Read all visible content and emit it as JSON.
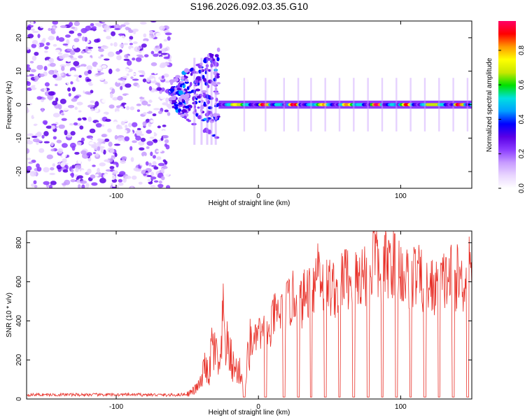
{
  "title": "S196.2026.092.03.35.G10",
  "colors": {
    "snr_line": "#e8322a",
    "axis": "#000000"
  },
  "chart_data": [
    {
      "type": "heatmap",
      "name": "spectrogram",
      "xlabel": "Height of straight line (km)",
      "ylabel": "Frequency (Hz)",
      "xlim": [
        -163,
        150
      ],
      "ylim": [
        -25,
        25
      ],
      "xticks": [
        -100,
        0,
        100
      ],
      "yticks": [
        -20,
        -10,
        0,
        10,
        20
      ],
      "colorbar": {
        "label": "Normalized spectral amplitude",
        "range": [
          0,
          0.97
        ],
        "ticks": [
          0.0,
          0.2,
          0.4,
          0.6,
          0.8
        ],
        "tick_labels": [
          "0.0",
          "0.2",
          "0.4",
          "0.6",
          "0.8"
        ],
        "colormap": [
          "#ffffff",
          "#e9d6ff",
          "#c79bff",
          "#8c3cff",
          "#5a00e6",
          "#0000ff",
          "#00a0ff",
          "#00e0e0",
          "#00e000",
          "#c8e800",
          "#ffff00",
          "#ff9900",
          "#ff0000",
          "#ff0066"
        ]
      },
      "features": {
        "noise_region_x": [
          -163,
          -62
        ],
        "transition_x": [
          -62,
          -28
        ],
        "tone_region_x": [
          -28,
          150
        ],
        "tone_frequency_hz": 0
      }
    },
    {
      "type": "line",
      "name": "snr",
      "xlabel": "Height of straight line (km)",
      "ylabel": "SNR (10 * v/v)",
      "xlim": [
        -163,
        150
      ],
      "ylim": [
        0,
        860
      ],
      "xticks": [
        -100,
        0,
        100
      ],
      "yticks": [
        0,
        200,
        400,
        600,
        800
      ],
      "series": [
        {
          "name": "SNR",
          "x": [
            -163,
            -140,
            -120,
            -100,
            -80,
            -60,
            -50,
            -45,
            -40,
            -37,
            -35,
            -33,
            -30,
            -27,
            -25,
            -22,
            -20,
            -17,
            -15,
            -12,
            -10,
            -7,
            -5,
            -3,
            0,
            3,
            5,
            8,
            10,
            15,
            20,
            25,
            30,
            35,
            40,
            42,
            45,
            50,
            55,
            60,
            65,
            70,
            75,
            80,
            81,
            85,
            90,
            95,
            100,
            105,
            110,
            115,
            120,
            125,
            130,
            135,
            140,
            145,
            150
          ],
          "values": [
            22,
            22,
            22,
            22,
            22,
            20,
            25,
            45,
            85,
            210,
            60,
            280,
            230,
            130,
            400,
            260,
            220,
            150,
            150,
            130,
            30,
            240,
            300,
            280,
            350,
            310,
            380,
            300,
            420,
            440,
            480,
            520,
            490,
            560,
            600,
            720,
            600,
            580,
            560,
            640,
            600,
            620,
            650,
            660,
            860,
            620,
            690,
            720,
            660,
            610,
            640,
            600,
            580,
            560,
            600,
            630,
            620,
            600,
            780
          ]
        }
      ],
      "dropouts_x": [
        -10,
        5,
        18,
        28,
        37,
        47,
        57,
        67,
        77,
        87,
        97,
        107,
        117,
        127,
        137,
        147
      ]
    }
  ]
}
